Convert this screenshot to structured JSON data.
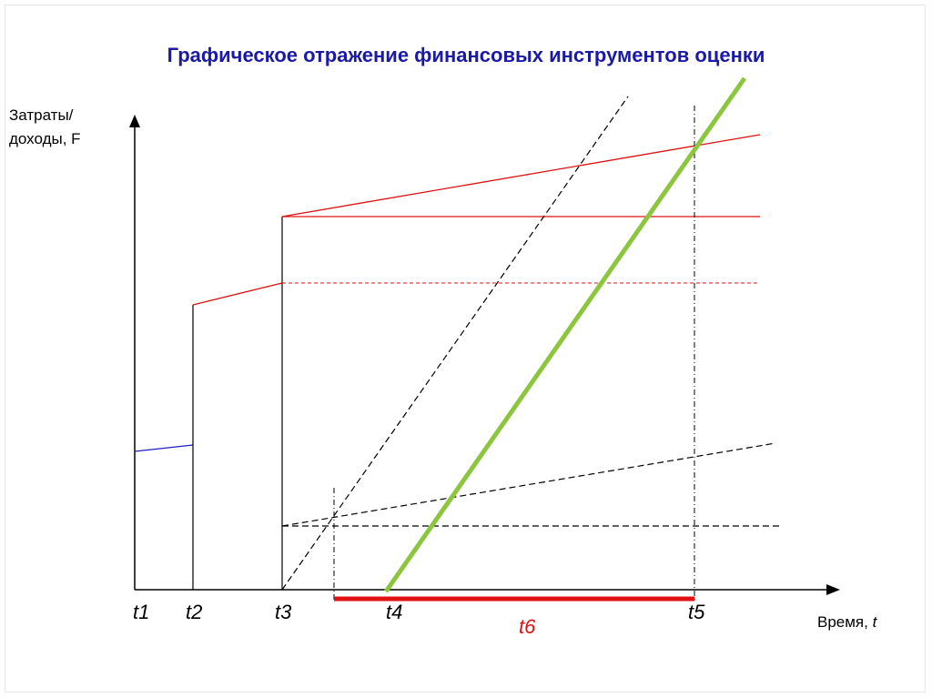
{
  "title": "Графическое отражение финансовых инструментов оценки",
  "y_axis_label": "Затраты/\nдоходы, F",
  "x_axis_label": {
    "text": "Время,",
    "var": "t"
  },
  "ticks": [
    "t1",
    "t2",
    "t3",
    "t4",
    "t5"
  ],
  "interval_label": "t6",
  "colors": {
    "title": "#1a1aa6",
    "red": "#e01010",
    "blue": "#2020c0",
    "green": "#8cc63f",
    "black": "#000000"
  }
}
